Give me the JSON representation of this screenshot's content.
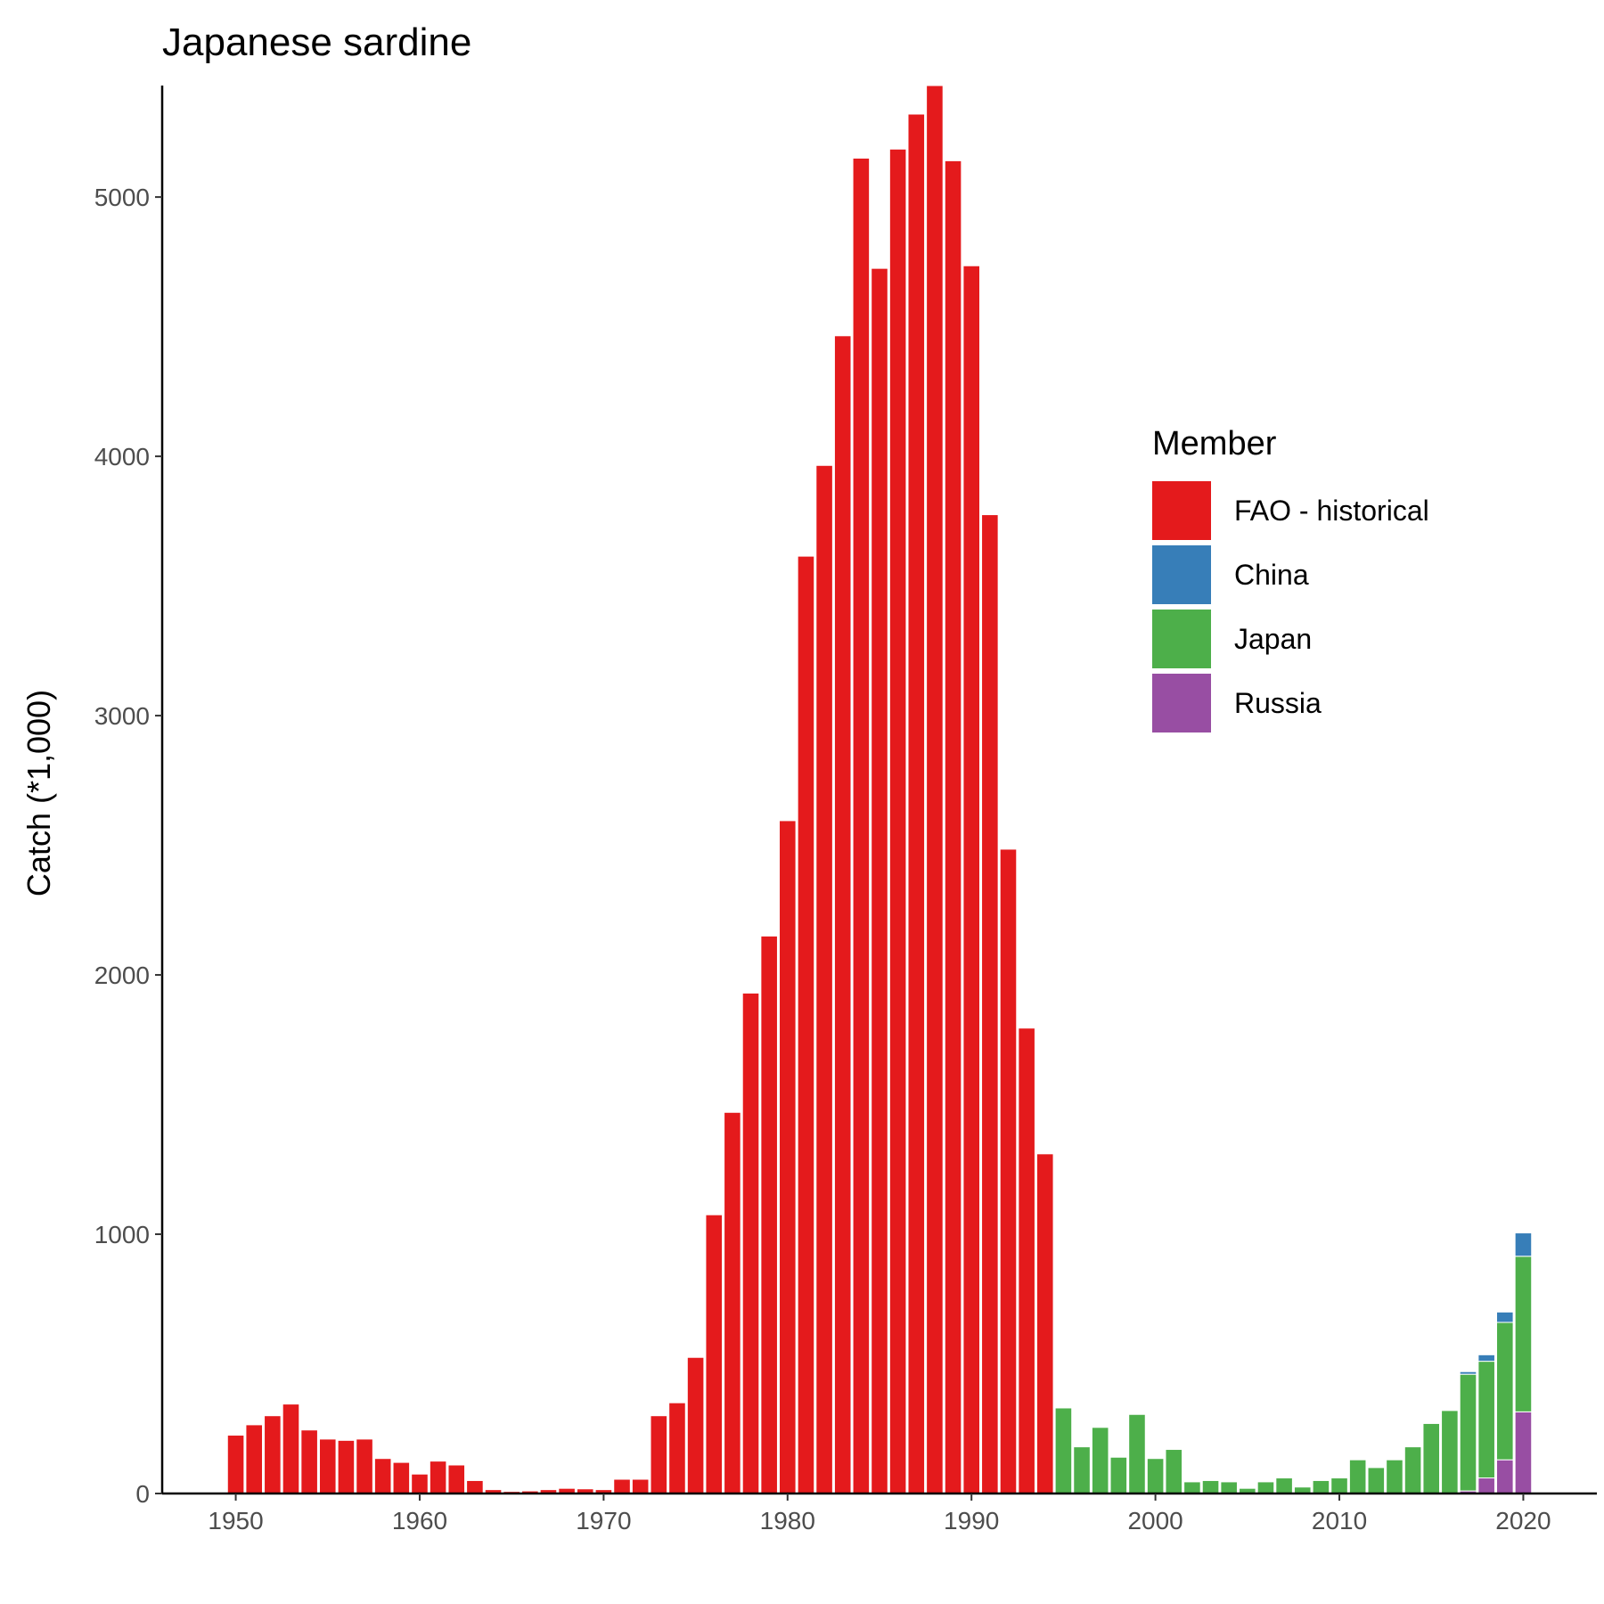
{
  "chart_data": {
    "type": "bar",
    "stacked": true,
    "title": "Japanese sardine",
    "xlabel": "",
    "ylabel": "Catch (*1,000)",
    "xlim": [
      1946,
      2024
    ],
    "ylim": [
      0,
      5430
    ],
    "x_ticks": [
      1950,
      1960,
      1970,
      1980,
      1990,
      2000,
      2010,
      2020
    ],
    "y_ticks": [
      0,
      1000,
      2000,
      3000,
      4000,
      5000
    ],
    "grid": false,
    "legend": {
      "title": "Member",
      "position": "right"
    },
    "stack_order": [
      "Russia",
      "Japan",
      "China",
      "FAO - historical"
    ],
    "series": [
      {
        "name": "FAO - historical",
        "color": "#e41a1c",
        "x": [
          1950,
          1951,
          1952,
          1953,
          1954,
          1955,
          1956,
          1957,
          1958,
          1959,
          1960,
          1961,
          1962,
          1963,
          1964,
          1965,
          1966,
          1967,
          1968,
          1969,
          1970,
          1971,
          1972,
          1973,
          1974,
          1975,
          1976,
          1977,
          1978,
          1979,
          1980,
          1981,
          1982,
          1983,
          1984,
          1985,
          1986,
          1987,
          1988,
          1989,
          1990,
          1991,
          1992,
          1993,
          1994
        ],
        "values": [
          225,
          265,
          300,
          345,
          245,
          210,
          205,
          210,
          135,
          120,
          75,
          125,
          110,
          50,
          15,
          8,
          10,
          15,
          20,
          18,
          15,
          55,
          55,
          300,
          350,
          525,
          1075,
          1470,
          1930,
          2150,
          2595,
          3615,
          3965,
          4465,
          5150,
          4725,
          5185,
          5320,
          5430,
          5140,
          4735,
          3775,
          2485,
          1795,
          1310
        ]
      },
      {
        "name": "China",
        "color": "#377eb8",
        "x": [
          2017,
          2018,
          2019,
          2020
        ],
        "values": [
          10,
          25,
          40,
          90
        ]
      },
      {
        "name": "Japan",
        "color": "#4daf4a",
        "x": [
          1995,
          1996,
          1997,
          1998,
          1999,
          2000,
          2001,
          2002,
          2003,
          2004,
          2005,
          2006,
          2007,
          2008,
          2009,
          2010,
          2011,
          2012,
          2013,
          2014,
          2015,
          2016,
          2017,
          2018,
          2019,
          2020
        ],
        "values": [
          330,
          180,
          255,
          140,
          305,
          135,
          170,
          45,
          50,
          45,
          20,
          45,
          60,
          25,
          50,
          60,
          130,
          100,
          130,
          180,
          270,
          320,
          450,
          450,
          530,
          600
        ]
      },
      {
        "name": "Russia",
        "color": "#984ea3",
        "x": [
          2017,
          2018,
          2019,
          2020
        ],
        "values": [
          10,
          60,
          130,
          315
        ]
      }
    ]
  }
}
